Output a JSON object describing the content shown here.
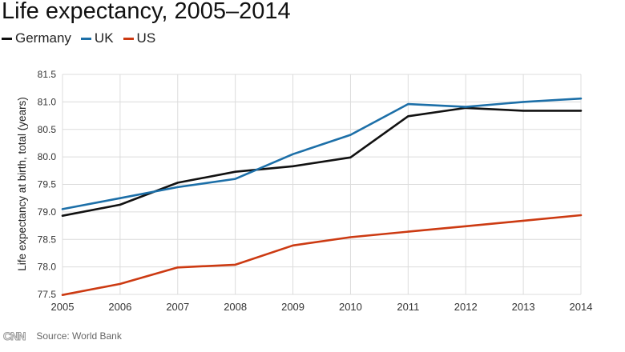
{
  "chart_data": {
    "type": "line",
    "title": "Life expectancy, 2005–2014",
    "ylabel": "Life expectancy at birth, total (years)",
    "xlabel": "",
    "x": [
      2005,
      2006,
      2007,
      2008,
      2009,
      2010,
      2011,
      2012,
      2013,
      2014
    ],
    "xticks": [
      "2005",
      "2006",
      "2007",
      "2008",
      "2009",
      "2010",
      "2011",
      "2012",
      "2013",
      "2014"
    ],
    "yticks": [
      "77.5",
      "78.0",
      "78.5",
      "79.0",
      "79.5",
      "80.0",
      "80.5",
      "81.0",
      "81.5"
    ],
    "ylim": [
      77.5,
      81.5
    ],
    "grid": true,
    "legend_position": "top-left",
    "series": [
      {
        "name": "Germany",
        "color": "#111111",
        "values": [
          78.93,
          79.13,
          79.53,
          79.73,
          79.83,
          79.99,
          80.74,
          80.89,
          80.84,
          80.84
        ]
      },
      {
        "name": "UK",
        "color": "#1c6fa8",
        "values": [
          79.05,
          79.25,
          79.45,
          79.6,
          80.05,
          80.4,
          80.96,
          80.91,
          81.0,
          81.06
        ]
      },
      {
        "name": "US",
        "color": "#cc3a12",
        "values": [
          77.49,
          77.69,
          77.99,
          78.04,
          78.39,
          78.54,
          78.64,
          78.74,
          78.84,
          78.94
        ]
      }
    ]
  },
  "footer": {
    "logo_text": "CNN",
    "source": "Source: World Bank"
  }
}
